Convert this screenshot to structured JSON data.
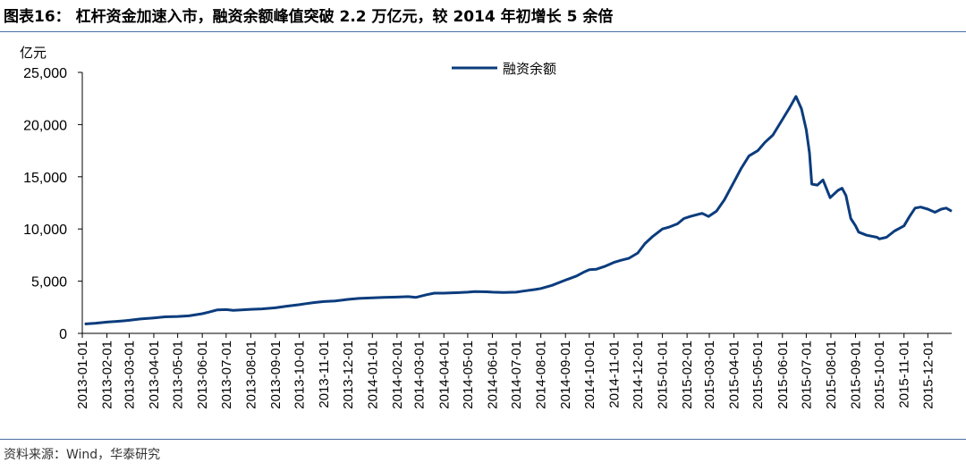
{
  "figure": {
    "title": "图表16： 杠杆资金加速入市，融资余额峰值突破 2.2 万亿元，较 2014 年初增长 5 余倍",
    "source": "资料来源：Wind，华泰研究"
  },
  "colors": {
    "line": "#0b3c7d",
    "rule": "#4a6fa5",
    "axis": "#000000"
  },
  "chart_data": {
    "type": "line",
    "unit_label": "亿元",
    "legend": {
      "position": "top-center",
      "entries": [
        "融资余额"
      ]
    },
    "grid": false,
    "ylim": [
      0,
      25000
    ],
    "yticks": [
      0,
      5000,
      10000,
      15000,
      20000,
      25000
    ],
    "ytick_labels": [
      "0",
      "5,000",
      "10,000",
      "15,000",
      "20,000",
      "25,000"
    ],
    "xlim": [
      "2013-01-01",
      "2015-12-31"
    ],
    "xticks": [
      "2013-01-01",
      "2013-02-01",
      "2013-03-01",
      "2013-04-01",
      "2013-05-01",
      "2013-06-01",
      "2013-07-01",
      "2013-08-01",
      "2013-09-01",
      "2013-10-01",
      "2013-11-01",
      "2013-12-01",
      "2014-01-01",
      "2014-02-01",
      "2014-03-01",
      "2014-04-01",
      "2014-05-01",
      "2014-06-01",
      "2014-07-01",
      "2014-08-01",
      "2014-09-01",
      "2014-10-01",
      "2014-11-01",
      "2014-12-01",
      "2015-01-01",
      "2015-02-01",
      "2015-03-01",
      "2015-04-01",
      "2015-05-01",
      "2015-06-01",
      "2015-07-01",
      "2015-08-01",
      "2015-09-01",
      "2015-10-01",
      "2015-11-01",
      "2015-12-01"
    ],
    "series": [
      {
        "name": "融资余额",
        "points": [
          [
            "2013-01-04",
            900
          ],
          [
            "2013-01-18",
            980
          ],
          [
            "2013-02-01",
            1080
          ],
          [
            "2013-02-22",
            1200
          ],
          [
            "2013-03-01",
            1250
          ],
          [
            "2013-03-15",
            1380
          ],
          [
            "2013-04-01",
            1480
          ],
          [
            "2013-04-15",
            1580
          ],
          [
            "2013-05-01",
            1620
          ],
          [
            "2013-05-15",
            1680
          ],
          [
            "2013-06-01",
            1880
          ],
          [
            "2013-06-10",
            2050
          ],
          [
            "2013-06-20",
            2250
          ],
          [
            "2013-07-01",
            2280
          ],
          [
            "2013-07-10",
            2200
          ],
          [
            "2013-07-20",
            2250
          ],
          [
            "2013-08-01",
            2300
          ],
          [
            "2013-08-15",
            2350
          ],
          [
            "2013-09-01",
            2450
          ],
          [
            "2013-09-15",
            2600
          ],
          [
            "2013-10-01",
            2750
          ],
          [
            "2013-10-10",
            2850
          ],
          [
            "2013-10-20",
            2950
          ],
          [
            "2013-11-01",
            3050
          ],
          [
            "2013-11-15",
            3100
          ],
          [
            "2013-12-01",
            3250
          ],
          [
            "2013-12-15",
            3350
          ],
          [
            "2014-01-01",
            3400
          ],
          [
            "2014-01-15",
            3450
          ],
          [
            "2014-02-01",
            3480
          ],
          [
            "2014-02-15",
            3520
          ],
          [
            "2014-02-25",
            3450
          ],
          [
            "2014-03-10",
            3700
          ],
          [
            "2014-03-20",
            3850
          ],
          [
            "2014-04-01",
            3850
          ],
          [
            "2014-04-20",
            3900
          ],
          [
            "2014-05-01",
            3950
          ],
          [
            "2014-05-10",
            4000
          ],
          [
            "2014-05-25",
            3980
          ],
          [
            "2014-06-01",
            3950
          ],
          [
            "2014-06-15",
            3920
          ],
          [
            "2014-07-01",
            3950
          ],
          [
            "2014-07-10",
            4050
          ],
          [
            "2014-07-25",
            4200
          ],
          [
            "2014-08-01",
            4300
          ],
          [
            "2014-08-15",
            4600
          ],
          [
            "2014-09-01",
            5100
          ],
          [
            "2014-09-15",
            5500
          ],
          [
            "2014-09-25",
            5900
          ],
          [
            "2014-10-01",
            6100
          ],
          [
            "2014-10-10",
            6150
          ],
          [
            "2014-10-20",
            6400
          ],
          [
            "2014-11-01",
            6800
          ],
          [
            "2014-11-10",
            7000
          ],
          [
            "2014-11-20",
            7200
          ],
          [
            "2014-12-01",
            7700
          ],
          [
            "2014-12-10",
            8600
          ],
          [
            "2014-12-20",
            9300
          ],
          [
            "2015-01-01",
            10000
          ],
          [
            "2015-01-10",
            10200
          ],
          [
            "2015-01-20",
            10500
          ],
          [
            "2015-01-28",
            11000
          ],
          [
            "2015-02-05",
            11200
          ],
          [
            "2015-02-15",
            11400
          ],
          [
            "2015-02-20",
            11500
          ],
          [
            "2015-02-28",
            11200
          ],
          [
            "2015-03-10",
            11700
          ],
          [
            "2015-03-20",
            12800
          ],
          [
            "2015-04-01",
            14500
          ],
          [
            "2015-04-10",
            15800
          ],
          [
            "2015-04-20",
            17000
          ],
          [
            "2015-05-01",
            17500
          ],
          [
            "2015-05-10",
            18300
          ],
          [
            "2015-05-20",
            19000
          ],
          [
            "2015-06-01",
            20500
          ],
          [
            "2015-06-10",
            21600
          ],
          [
            "2015-06-18",
            22700
          ],
          [
            "2015-06-25",
            21500
          ],
          [
            "2015-07-01",
            19500
          ],
          [
            "2015-07-05",
            17300
          ],
          [
            "2015-07-08",
            14300
          ],
          [
            "2015-07-15",
            14200
          ],
          [
            "2015-07-22",
            14700
          ],
          [
            "2015-07-31",
            13000
          ],
          [
            "2015-08-10",
            13700
          ],
          [
            "2015-08-15",
            13900
          ],
          [
            "2015-08-20",
            13200
          ],
          [
            "2015-08-26",
            11000
          ],
          [
            "2015-09-01",
            10300
          ],
          [
            "2015-09-05",
            9700
          ],
          [
            "2015-09-15",
            9400
          ],
          [
            "2015-09-28",
            9200
          ],
          [
            "2015-10-01",
            9050
          ],
          [
            "2015-10-10",
            9200
          ],
          [
            "2015-10-20",
            9800
          ],
          [
            "2015-11-01",
            10300
          ],
          [
            "2015-11-08",
            11200
          ],
          [
            "2015-11-15",
            12000
          ],
          [
            "2015-11-22",
            12100
          ],
          [
            "2015-12-01",
            11900
          ],
          [
            "2015-12-10",
            11600
          ],
          [
            "2015-12-18",
            11900
          ],
          [
            "2015-12-24",
            12000
          ],
          [
            "2015-12-31",
            11700
          ]
        ]
      }
    ]
  }
}
